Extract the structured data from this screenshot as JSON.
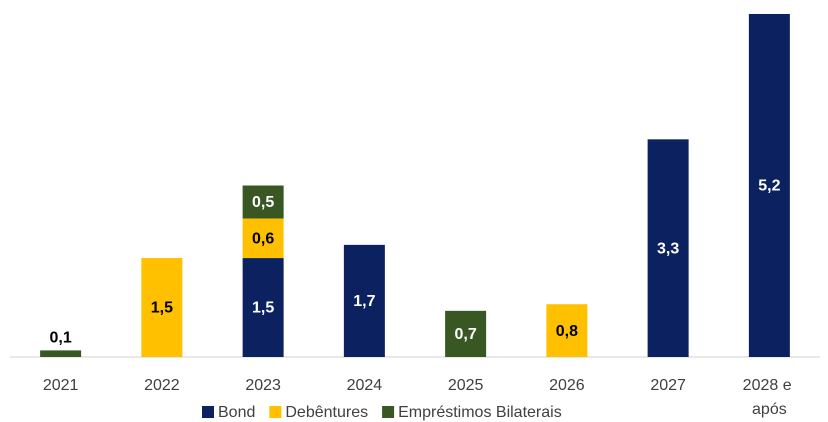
{
  "chart_data": {
    "type": "stacked_bar",
    "categories": [
      "2021",
      "2022",
      "2023",
      "2024",
      "2025",
      "2026",
      "2027",
      "2028 e após"
    ],
    "series": [
      {
        "name": "Bond",
        "color": "#0c2260",
        "values": [
          null,
          null,
          1.5,
          1.7,
          null,
          null,
          3.3,
          5.2
        ],
        "value_labels": [
          null,
          null,
          "1,5",
          "1,7",
          null,
          null,
          "3,3",
          "5,2"
        ]
      },
      {
        "name": "Debêntures",
        "color": "#ffc000",
        "values": [
          null,
          1.5,
          0.6,
          null,
          null,
          0.8,
          null,
          null
        ],
        "value_labels": [
          null,
          "1,5",
          "0,6",
          null,
          null,
          "0,8",
          null,
          null
        ]
      },
      {
        "name": "Empréstimos Bilaterais",
        "color": "#385723",
        "values": [
          0.1,
          null,
          0.5,
          null,
          0.7,
          null,
          null,
          null
        ],
        "value_labels": [
          "0,1",
          null,
          "0,5",
          null,
          "0,7",
          null,
          null,
          null
        ]
      }
    ],
    "ylim": [
      0,
      5.2
    ],
    "legend": "bottom"
  }
}
